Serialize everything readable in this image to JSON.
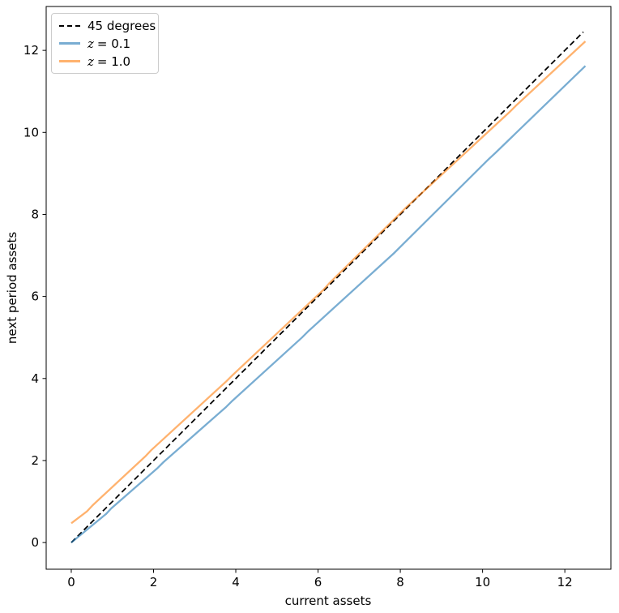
{
  "chart_data": {
    "type": "line",
    "title": "",
    "xlabel": "current assets",
    "ylabel": "next period assets",
    "xlim": [
      -0.61,
      13.12
    ],
    "ylim": [
      -0.65,
      13.07
    ],
    "grid": false,
    "legend_position": "upper left",
    "xticks": [
      {
        "v": 0,
        "label": "0"
      },
      {
        "v": 2,
        "label": "2"
      },
      {
        "v": 4,
        "label": "4"
      },
      {
        "v": 6,
        "label": "6"
      },
      {
        "v": 8,
        "label": "8"
      },
      {
        "v": 10,
        "label": "10"
      },
      {
        "v": 12,
        "label": "12"
      }
    ],
    "yticks": [
      {
        "v": 0,
        "label": "0"
      },
      {
        "v": 2,
        "label": "2"
      },
      {
        "v": 4,
        "label": "4"
      },
      {
        "v": 6,
        "label": "6"
      },
      {
        "v": 8,
        "label": "8"
      },
      {
        "v": 10,
        "label": "10"
      },
      {
        "v": 12,
        "label": "12"
      }
    ],
    "series": [
      {
        "id": "45-degrees",
        "name": "45 degrees",
        "color": "#000000",
        "opacity": 1,
        "width": 1.8,
        "dash": true,
        "x": [
          0,
          12.45
        ],
        "y": [
          0,
          12.45
        ]
      },
      {
        "id": "z-0-1",
        "name": "z = 0.1",
        "color": "#1f77b4",
        "opacity": 0.6,
        "width": 2.3,
        "dash": false,
        "x": [
          0,
          0.85,
          0.97,
          2.1,
          2.24,
          3.77,
          3.92,
          5.61,
          5.77,
          7.84,
          8.0,
          10.14,
          10.31,
          12.5
        ],
        "y": [
          0,
          0.7,
          0.83,
          1.82,
          1.96,
          3.31,
          3.46,
          5.0,
          5.16,
          7.05,
          7.21,
          9.34,
          9.5,
          11.62
        ]
      },
      {
        "id": "z-1-0",
        "name": "z = 1.0",
        "color": "#ff7f0e",
        "opacity": 0.6,
        "width": 2.3,
        "dash": false,
        "x": [
          0,
          0.38,
          0.52,
          1.8,
          1.94,
          3.77,
          3.92,
          6.12,
          6.28,
          7.97,
          8.12,
          10.66,
          10.81,
          12.5
        ],
        "y": [
          0.47,
          0.76,
          0.91,
          2.1,
          2.25,
          3.93,
          4.08,
          6.15,
          6.33,
          8.0,
          8.15,
          10.5,
          10.65,
          12.22
        ]
      }
    ],
    "legend": [
      {
        "var": "",
        "text": "45 degrees",
        "color": "#000000",
        "dashed": true
      },
      {
        "var": "z",
        "text": "= 0.1",
        "color": "#79add2",
        "dashed": false
      },
      {
        "var": "z",
        "text": "= 1.0",
        "color": "#ffb26e",
        "dashed": false
      }
    ]
  }
}
